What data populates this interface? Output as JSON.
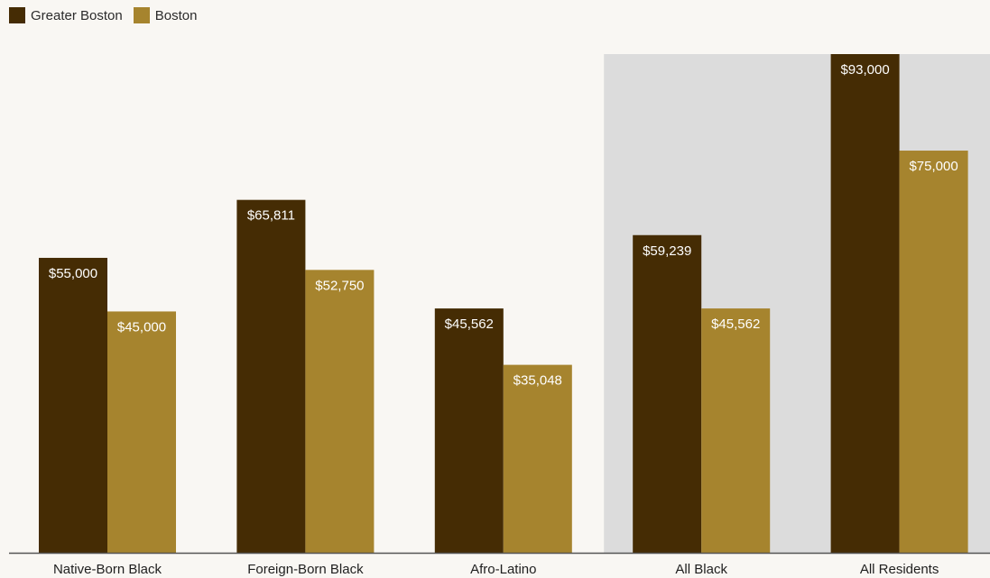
{
  "legend": {
    "items": [
      {
        "label": "Greater Boston",
        "color": "#452c04"
      },
      {
        "label": "Boston",
        "color": "#a6842e"
      }
    ]
  },
  "colors": {
    "highlight_band": "#dcdcdc",
    "axis": "#555555",
    "label_text": "#ffffff",
    "tick_text": "#1f1f1f"
  },
  "chart_data": {
    "type": "bar",
    "categories": [
      "Native-Born Black",
      "Foreign-Born Black",
      "Afro-Latino",
      "All Black",
      "All Residents"
    ],
    "series": [
      {
        "name": "Greater Boston",
        "values": [
          55000,
          65811,
          45562,
          59239,
          93000
        ]
      },
      {
        "name": "Boston",
        "values": [
          45000,
          52750,
          35048,
          45562,
          75000
        ]
      }
    ],
    "data_labels": [
      [
        "$55,000",
        "$65,811",
        "$45,562",
        "$59,239",
        "$93,000"
      ],
      [
        "$45,000",
        "$52,750",
        "$35,048",
        "$45,562",
        "$75,000"
      ]
    ],
    "ylim": [
      0,
      93000
    ],
    "highlighted_categories": [
      "All Black",
      "All Residents"
    ],
    "grid": false,
    "legend_position": "top-left"
  }
}
